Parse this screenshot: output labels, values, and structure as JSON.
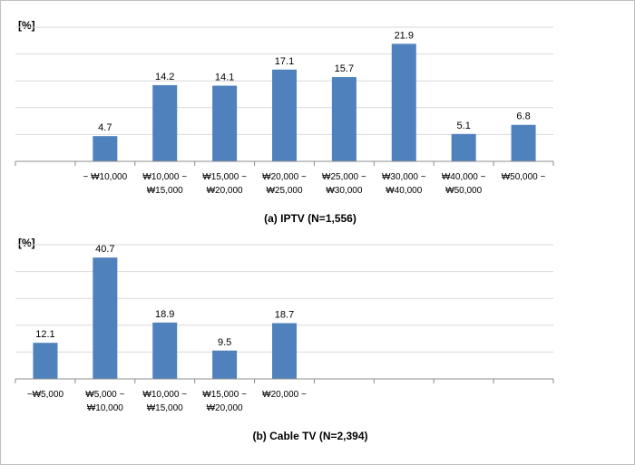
{
  "chart_data": [
    {
      "type": "bar",
      "unit_label": "[%]",
      "caption": "(a) IPTV (N=1,556)",
      "categories": [
        "",
        "~ ₩10,000",
        "₩10,000 ~\n₩15,000",
        "₩15,000 ~\n₩20,000",
        "₩20,000 ~\n₩25,000",
        "₩25,000 ~\n₩30,000",
        "₩30,000 ~\n₩40,000",
        "₩40,000 ~\n₩50,000",
        "₩50,000 ~"
      ],
      "values": [
        null,
        4.7,
        14.2,
        14.1,
        17.1,
        15.7,
        21.9,
        5.1,
        6.8
      ],
      "value_labels": [
        "",
        "4.7",
        "14.2",
        "14.1",
        "17.1",
        "15.7",
        "21.9",
        "5.1",
        "6.8"
      ],
      "ylim": [
        0,
        25
      ],
      "grid": true,
      "bar_color": "#4f81bd"
    },
    {
      "type": "bar",
      "unit_label": "[%]",
      "caption": "(b) Cable TV (N=2,394)",
      "categories": [
        "~₩5,000",
        "₩5,000 ~\n₩10,000",
        "₩10,000 ~\n₩15,000",
        "₩15,000 ~\n₩20,000",
        "₩20,000 ~",
        "",
        "",
        "",
        ""
      ],
      "values": [
        12.1,
        40.7,
        18.9,
        9.5,
        18.7,
        null,
        null,
        null,
        null
      ],
      "value_labels": [
        "12.1",
        "40.7",
        "18.9",
        "9.5",
        "18.7",
        "",
        "",
        "",
        ""
      ],
      "ylim": [
        0,
        45
      ],
      "grid": true,
      "bar_color": "#4f81bd"
    }
  ]
}
